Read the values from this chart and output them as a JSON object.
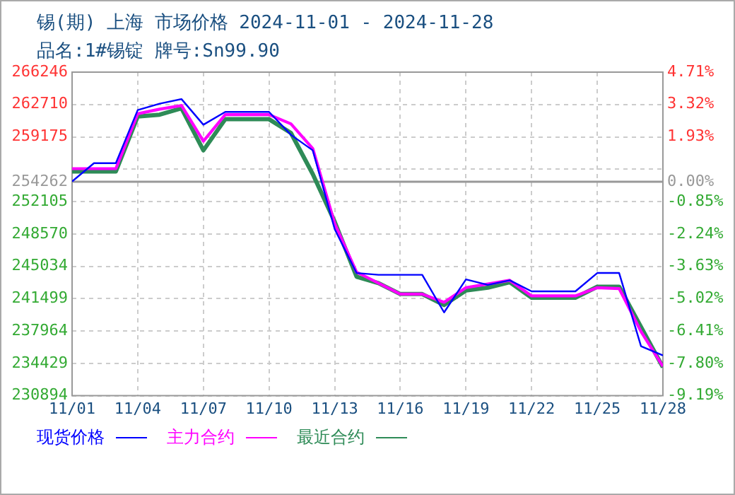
{
  "chart_data": {
    "type": "line",
    "title": "锡(期) 上海 市场价格 2024-11-01 - 2024-11-28",
    "subtitle": "品名:1#锡锭 牌号:Sn99.90",
    "x": [
      "2024-11-01",
      "2024-11-02",
      "2024-11-03",
      "2024-11-04",
      "2024-11-05",
      "2024-11-06",
      "2024-11-07",
      "2024-11-08",
      "2024-11-09",
      "2024-11-10",
      "2024-11-11",
      "2024-11-12",
      "2024-11-13",
      "2024-11-14",
      "2024-11-15",
      "2024-11-16",
      "2024-11-17",
      "2024-11-18",
      "2024-11-19",
      "2024-11-20",
      "2024-11-21",
      "2024-11-22",
      "2024-11-23",
      "2024-11-24",
      "2024-11-25",
      "2024-11-26",
      "2024-11-27",
      "2024-11-28"
    ],
    "series": [
      {
        "name": "现货价格",
        "color": "#0000ff",
        "values": [
          254300,
          256300,
          256300,
          262100,
          262800,
          263300,
          260500,
          261900,
          261900,
          261900,
          259400,
          257700,
          249100,
          244300,
          244100,
          244100,
          244100,
          240000,
          243600,
          243000,
          243500,
          242300,
          242300,
          242300,
          244300,
          244300,
          236300,
          235300
        ]
      },
      {
        "name": "主力合约",
        "color": "#ff00ff",
        "values": [
          255700,
          255700,
          255700,
          261700,
          262200,
          262600,
          258700,
          261600,
          261600,
          261600,
          260600,
          257900,
          249700,
          244400,
          243200,
          242000,
          242000,
          241100,
          242700,
          243100,
          243500,
          241800,
          241800,
          241800,
          242700,
          242600,
          237900,
          234100
        ]
      },
      {
        "name": "最近合约",
        "color": "#2e8b57",
        "values": [
          255400,
          255400,
          255400,
          261400,
          261600,
          262300,
          257700,
          261100,
          261100,
          261100,
          259600,
          255100,
          249900,
          243900,
          243200,
          242000,
          242000,
          240800,
          242400,
          242700,
          243300,
          241600,
          241600,
          241600,
          242800,
          242800,
          238400,
          234000
        ]
      }
    ],
    "xlim": [
      "2024-11-01",
      "2024-11-28"
    ],
    "xticks": [
      {
        "value": "2024-11-01",
        "label": "11/01"
      },
      {
        "value": "2024-11-04",
        "label": "11/04"
      },
      {
        "value": "2024-11-07",
        "label": "11/07"
      },
      {
        "value": "2024-11-10",
        "label": "11/10"
      },
      {
        "value": "2024-11-13",
        "label": "11/13"
      },
      {
        "value": "2024-11-16",
        "label": "11/16"
      },
      {
        "value": "2024-11-19",
        "label": "11/19"
      },
      {
        "value": "2024-11-22",
        "label": "11/22"
      },
      {
        "value": "2024-11-25",
        "label": "11/25"
      },
      {
        "value": "2024-11-28",
        "label": "11/28"
      }
    ],
    "ylim": [
      230894,
      266246
    ],
    "yticks": [
      266246,
      262710,
      259175,
      {
        "value": 255640,
        "label": null
      },
      254262,
      252105,
      248570,
      245034,
      241499,
      237964,
      234429,
      230894
    ],
    "y2lim": [
      -9.19,
      4.71
    ],
    "y2ticks": [
      {
        "value": 4.71,
        "label": "4.71%"
      },
      {
        "value": 3.32,
        "label": "3.32%"
      },
      {
        "value": 1.93,
        "label": "1.93%"
      },
      {
        "value": 0.54,
        "label": null
      },
      {
        "value": 0,
        "label": "0.00%"
      },
      {
        "value": -0.85,
        "label": "-0.85%"
      },
      {
        "value": -2.24,
        "label": "-2.24%"
      },
      {
        "value": -3.63,
        "label": "-3.63%"
      },
      {
        "value": -5.02,
        "label": "-5.02%"
      },
      {
        "value": -6.41,
        "label": "-6.41%"
      },
      {
        "value": -7.8,
        "label": "-7.80%"
      },
      {
        "value": -9.19,
        "label": "-9.19%"
      }
    ],
    "ref_lines": [
      {
        "axis": "y",
        "value": 254262,
        "color": "#999999"
      }
    ],
    "grid": true,
    "legend": "bottom",
    "marker": "none",
    "line_style": "solid"
  }
}
